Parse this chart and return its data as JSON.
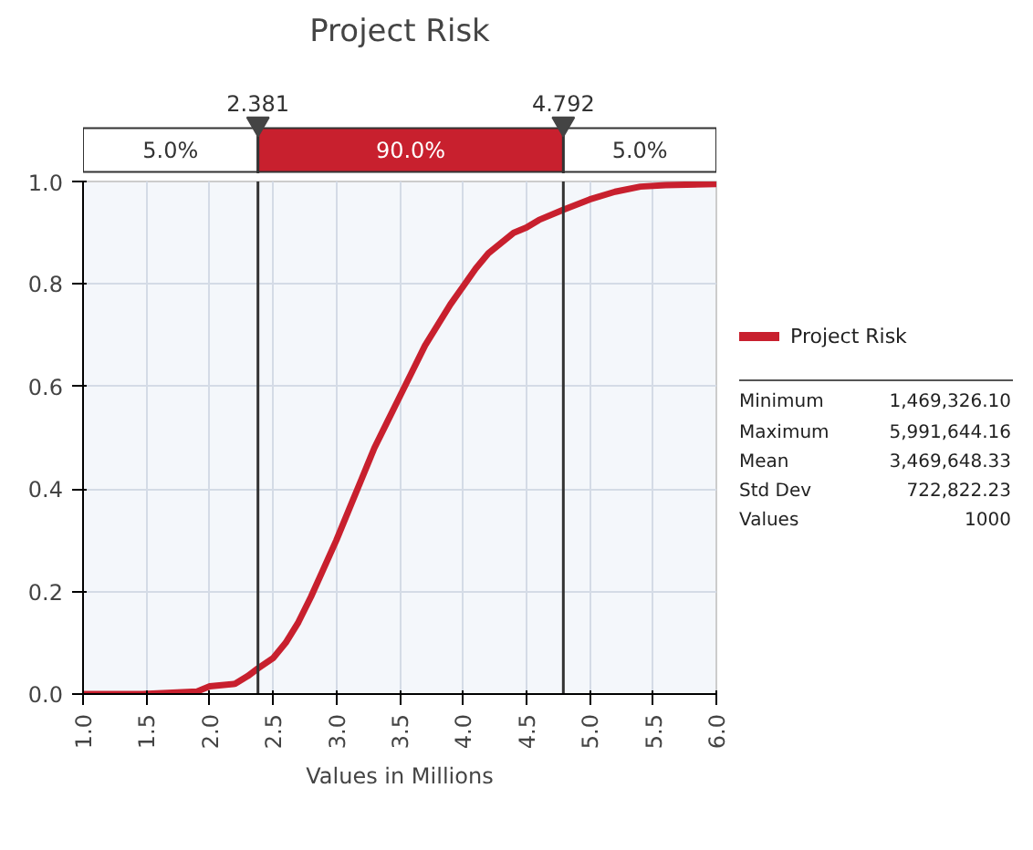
{
  "chart_data": {
    "type": "line",
    "title": "Project Risk",
    "xlabel": "Values in Millions",
    "x": [
      1.0,
      1.47,
      1.9,
      2.0,
      2.2,
      2.3,
      2.381,
      2.5,
      2.6,
      2.7,
      2.8,
      2.9,
      3.0,
      3.1,
      3.2,
      3.3,
      3.4,
      3.5,
      3.6,
      3.7,
      3.8,
      3.9,
      4.0,
      4.1,
      4.2,
      4.3,
      4.4,
      4.5,
      4.6,
      4.792,
      5.0,
      5.2,
      5.4,
      5.6,
      6.0
    ],
    "series": [
      {
        "name": "Project Risk",
        "color": "#c8202e",
        "values": [
          0.0,
          0.0,
          0.005,
          0.015,
          0.02,
          0.035,
          0.05,
          0.07,
          0.1,
          0.14,
          0.19,
          0.245,
          0.3,
          0.36,
          0.42,
          0.48,
          0.53,
          0.58,
          0.63,
          0.68,
          0.72,
          0.76,
          0.795,
          0.83,
          0.86,
          0.88,
          0.9,
          0.91,
          0.925,
          0.945,
          0.965,
          0.98,
          0.99,
          0.993,
          0.995
        ]
      }
    ],
    "xlim": [
      1.0,
      6.0
    ],
    "xticks": [
      {
        "value": 1.0,
        "label": "1.0"
      },
      1.5,
      {
        "value": 2.0,
        "label": "2.0"
      },
      2.5,
      {
        "value": 3.0,
        "label": "3.0"
      },
      3.5,
      {
        "value": 4.0,
        "label": "4.0"
      },
      4.5,
      {
        "value": 5.0,
        "label": "5.0"
      },
      5.5,
      {
        "value": 6.0,
        "label": "6.0"
      }
    ],
    "ylim": [
      0.0,
      1.0
    ],
    "yticks": [
      {
        "value": 0.0,
        "label": "0.0"
      },
      0.2,
      0.4,
      0.6,
      0.8,
      {
        "value": 1.0,
        "label": "1.0"
      }
    ],
    "ref_lines": [
      {
        "axis": "x",
        "value": 2.381,
        "label": "2.381",
        "color": "#333333"
      },
      {
        "axis": "x",
        "value": 4.792,
        "label": "4.792",
        "color": "#333333"
      }
    ],
    "annotations": [
      "5.0%",
      "90.0%",
      "5.0%",
      "Minimum 1,469,326.10",
      "Maximum 5,991,644.16",
      "Mean 3,469,648.33",
      "Std Dev 722,822.23",
      "Values 1000"
    ],
    "grid": true,
    "legend": "right",
    "marker": "none",
    "line_style": "solid"
  }
}
